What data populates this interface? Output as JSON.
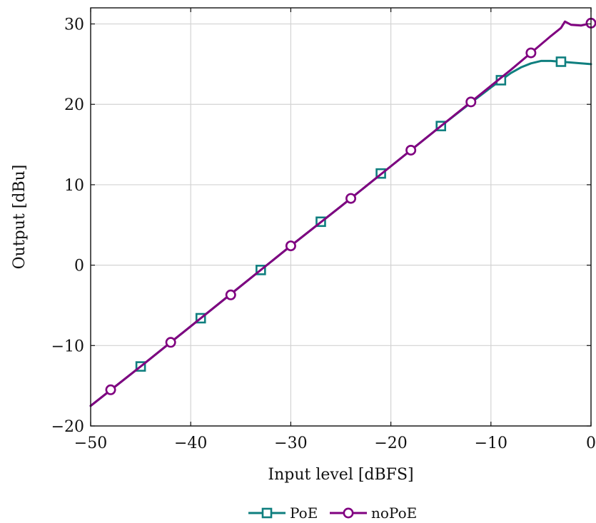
{
  "chart_data": {
    "type": "line",
    "title": "",
    "xlabel": "Input level [dBFS]",
    "ylabel": "Output [dBu]",
    "xlim": [
      -50,
      0
    ],
    "ylim": [
      -20,
      32
    ],
    "xticks": [
      -50,
      -40,
      -30,
      -20,
      -10,
      0
    ],
    "yticks": [
      -20,
      -10,
      0,
      10,
      20,
      30
    ],
    "xtick_labels": [
      "−50",
      "−40",
      "−30",
      "−20",
      "−10",
      "0"
    ],
    "ytick_labels": [
      "−20",
      "−10",
      "0",
      "10",
      "20",
      "30"
    ],
    "grid": true,
    "legend_position": "bottom-center",
    "series": [
      {
        "name": "PoE",
        "color": "#0f7f7f",
        "marker": "square",
        "line": [
          [
            -50,
            -17.5
          ],
          [
            -45,
            -12.6
          ],
          [
            -40,
            -7.6
          ],
          [
            -35,
            -2.6
          ],
          [
            -30,
            2.4
          ],
          [
            -25,
            7.3
          ],
          [
            -20,
            12.3
          ],
          [
            -15,
            17.3
          ],
          [
            -12,
            20.2
          ],
          [
            -10,
            22.1
          ],
          [
            -9,
            23.0
          ],
          [
            -8,
            23.9
          ],
          [
            -7,
            24.6
          ],
          [
            -6,
            25.1
          ],
          [
            -5,
            25.4
          ],
          [
            -4,
            25.4
          ],
          [
            -3,
            25.3
          ],
          [
            -2,
            25.2
          ],
          [
            -1,
            25.1
          ],
          [
            0,
            25.0
          ]
        ],
        "markers": [
          [
            -45,
            -12.6
          ],
          [
            -39,
            -6.6
          ],
          [
            -33,
            -0.6
          ],
          [
            -27,
            5.4
          ],
          [
            -21,
            11.4
          ],
          [
            -15,
            17.3
          ],
          [
            -9,
            23.0
          ],
          [
            -3,
            25.3
          ]
        ]
      },
      {
        "name": "noPoE",
        "color": "#800080",
        "marker": "circle",
        "line": [
          [
            -50,
            -17.5
          ],
          [
            -45,
            -12.6
          ],
          [
            -40,
            -7.6
          ],
          [
            -35,
            -2.6
          ],
          [
            -30,
            2.4
          ],
          [
            -25,
            7.3
          ],
          [
            -20,
            12.3
          ],
          [
            -15,
            17.3
          ],
          [
            -12,
            20.3
          ],
          [
            -10,
            22.3
          ],
          [
            -8,
            24.3
          ],
          [
            -6,
            26.4
          ],
          [
            -4,
            28.5
          ],
          [
            -3,
            29.5
          ],
          [
            -2.6,
            30.3
          ],
          [
            -2,
            29.9
          ],
          [
            -1,
            29.8
          ],
          [
            0,
            30.1
          ]
        ],
        "markers": [
          [
            -48,
            -15.5
          ],
          [
            -42,
            -9.6
          ],
          [
            -36,
            -3.7
          ],
          [
            -30,
            2.4
          ],
          [
            -24,
            8.3
          ],
          [
            -18,
            14.3
          ],
          [
            -12,
            20.3
          ],
          [
            -6,
            26.4
          ],
          [
            0,
            30.1
          ]
        ]
      }
    ]
  }
}
